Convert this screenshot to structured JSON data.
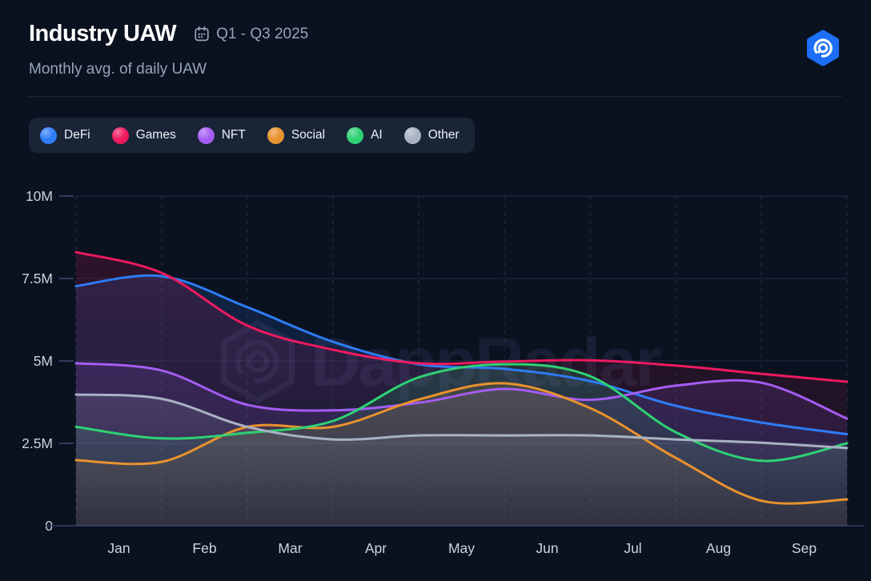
{
  "header": {
    "title": "Industry UAW",
    "period": "Q1 - Q3 2025",
    "subtitle": "Monthly avg. of daily UAW"
  },
  "watermark": {
    "text": "DappRadar"
  },
  "legend": {
    "items": [
      {
        "label": "DeFi",
        "color": "#2e7cf6"
      },
      {
        "label": "Games",
        "color": "#ed1a5f"
      },
      {
        "label": "NFT",
        "color": "#a45df2"
      },
      {
        "label": "Social",
        "color": "#e8922e"
      },
      {
        "label": "AI",
        "color": "#2ed174"
      },
      {
        "label": "Other",
        "color": "#a8b2c3"
      }
    ]
  },
  "colors": {
    "background": "#0a1220",
    "brand_blue": "#1b6ef5",
    "axis_text": "#c9d2e2",
    "muted_text": "#97a3b9"
  },
  "chart_data": {
    "type": "line",
    "title": "Industry UAW",
    "subtitle": "Monthly avg. of daily UAW",
    "period": "Q1 - Q3 2025",
    "unit": "millions of unique active wallets",
    "categories": [
      "Jan",
      "Feb",
      "Mar",
      "Apr",
      "May",
      "Jun",
      "Jul",
      "Aug",
      "Sep"
    ],
    "x_sampling": "10 equally-spaced points at month boundaries Jan-start through Sep-end; month labels centered between gridlines",
    "ylim": [
      0,
      10
    ],
    "y_ticks": [
      {
        "label": "0",
        "value": 0
      },
      {
        "label": "2.5M",
        "value": 2.5
      },
      {
        "label": "5M",
        "value": 5
      },
      {
        "label": "7.5M",
        "value": 7.5
      },
      {
        "label": "10M",
        "value": 10
      }
    ],
    "grid": {
      "horizontal": "solid",
      "vertical": "dashed"
    },
    "legend_position": "top-left pill",
    "series": [
      {
        "name": "DeFi",
        "color": "#2e7cf6",
        "values": [
          7.27,
          7.57,
          6.63,
          5.58,
          4.9,
          4.76,
          4.39,
          3.64,
          3.13,
          2.78
        ]
      },
      {
        "name": "Games",
        "color": "#ed1a5f",
        "values": [
          8.3,
          7.67,
          6.07,
          5.34,
          4.93,
          4.98,
          5.02,
          4.86,
          4.61,
          4.37
        ]
      },
      {
        "name": "NFT",
        "color": "#a45df2",
        "values": [
          4.93,
          4.71,
          3.67,
          3.5,
          3.73,
          4.15,
          3.82,
          4.25,
          4.34,
          3.25
        ]
      },
      {
        "name": "Social",
        "color": "#e8922e",
        "values": [
          1.99,
          1.94,
          3.0,
          3.0,
          3.83,
          4.32,
          3.57,
          2.06,
          0.76,
          0.8
        ]
      },
      {
        "name": "AI",
        "color": "#2ed174",
        "values": [
          3.0,
          2.65,
          2.82,
          3.18,
          4.5,
          4.9,
          4.54,
          2.84,
          1.97,
          2.5
        ]
      },
      {
        "name": "Other",
        "color": "#a8b2c3",
        "values": [
          3.98,
          3.85,
          3.0,
          2.62,
          2.74,
          2.74,
          2.74,
          2.62,
          2.52,
          2.36
        ]
      }
    ]
  }
}
